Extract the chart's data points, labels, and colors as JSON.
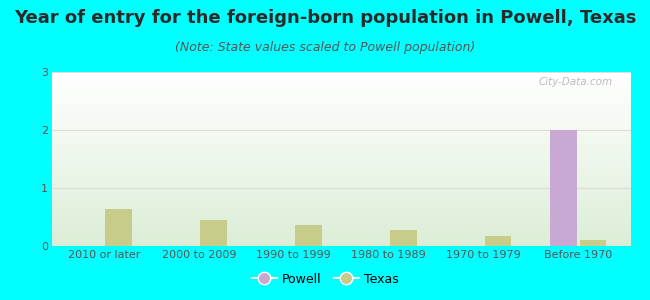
{
  "title": "Year of entry for the foreign-born population in Powell, Texas",
  "subtitle": "(Note: State values scaled to Powell population)",
  "categories": [
    "2010 or later",
    "2000 to 2009",
    "1990 to 1999",
    "1980 to 1989",
    "1970 to 1979",
    "Before 1970"
  ],
  "powell_values": [
    0,
    0,
    0,
    0,
    0,
    2.0
  ],
  "texas_values": [
    0.63,
    0.45,
    0.37,
    0.28,
    0.18,
    0.1
  ],
  "powell_color": "#c9a8d4",
  "texas_color": "#c8cc8a",
  "background_color": "#00ffff",
  "ylim": [
    0,
    3
  ],
  "yticks": [
    0,
    1,
    2,
    3
  ],
  "bar_width": 0.28,
  "legend_powell": "Powell",
  "legend_texas": "Texas",
  "watermark": "City-Data.com",
  "title_fontsize": 13,
  "subtitle_fontsize": 9,
  "tick_fontsize": 8,
  "title_color": "#2a2a2a",
  "subtitle_color": "#555555",
  "tick_color": "#555555",
  "grid_color": "#dddddd"
}
